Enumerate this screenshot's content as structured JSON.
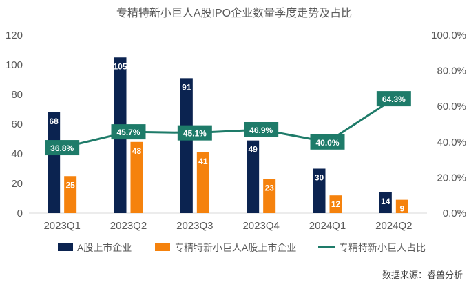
{
  "chart_data": {
    "type": "bar",
    "title": "专精特新小巨人A股IPO企业数量季度走势及占比",
    "categories": [
      "2023Q1",
      "2023Q2",
      "2023Q3",
      "2023Q4",
      "2024Q1",
      "2024Q2"
    ],
    "series": [
      {
        "name": "A股上市企业",
        "type": "bar",
        "axis": "left",
        "color": "#0b2350",
        "values": [
          68,
          105,
          91,
          49,
          30,
          14
        ]
      },
      {
        "name": "专精特新小巨人A股上市企业",
        "type": "bar",
        "axis": "left",
        "color": "#f5820d",
        "values": [
          25,
          48,
          41,
          23,
          12,
          9
        ]
      },
      {
        "name": "专精特新小巨人占比",
        "type": "line",
        "axis": "right",
        "color": "#1e7b69",
        "values": [
          36.8,
          45.7,
          45.1,
          46.9,
          40.0,
          64.3
        ],
        "labels": [
          "36.8%",
          "45.7%",
          "45.1%",
          "46.9%",
          "40.0%",
          "64.3%"
        ]
      }
    ],
    "yleft": {
      "range": [
        0,
        120
      ],
      "ticks": [
        "0",
        "20",
        "40",
        "60",
        "80",
        "100",
        "120"
      ]
    },
    "yright": {
      "range": [
        0,
        100
      ],
      "ticks": [
        "0.0%",
        "20.0%",
        "40.0%",
        "60.0%",
        "80.0%",
        "100.0%"
      ]
    },
    "grid": false,
    "legend": "bottom"
  },
  "source": "数据来源：睿兽分析"
}
